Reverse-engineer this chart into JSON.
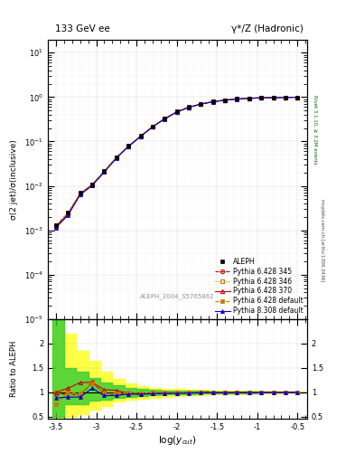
{
  "title_left": "133 GeV ee",
  "title_right": "γ*/Z (Hadronic)",
  "ylabel_main": "σ(2 jet)/σ(inclusive)",
  "ylabel_ratio": "Ratio to ALEPH",
  "xlabel": "log($y_{cut}$)",
  "watermark": "ALEPH_2004_S5765862",
  "right_label_top": "Rivet 3.1.10, ≥ 3.2M events",
  "right_label_bot": "mcplots.cern.ch [arXiv:1306.3436]",
  "xcut_log": [
    -3.5,
    -3.35,
    -3.2,
    -3.05,
    -2.9,
    -2.75,
    -2.6,
    -2.45,
    -2.3,
    -2.15,
    -2.0,
    -1.85,
    -1.7,
    -1.55,
    -1.4,
    -1.25,
    -1.1,
    -0.95,
    -0.8,
    -0.65,
    -0.5
  ],
  "aleph_y": [
    0.0013,
    0.0025,
    0.007,
    0.011,
    0.022,
    0.045,
    0.08,
    0.135,
    0.22,
    0.33,
    0.47,
    0.6,
    0.7,
    0.79,
    0.86,
    0.91,
    0.94,
    0.965,
    0.977,
    0.987,
    0.994
  ],
  "p6_345_y": [
    0.0012,
    0.0023,
    0.0065,
    0.0105,
    0.021,
    0.043,
    0.078,
    0.13,
    0.215,
    0.325,
    0.462,
    0.592,
    0.695,
    0.787,
    0.855,
    0.907,
    0.94,
    0.962,
    0.975,
    0.985,
    0.993
  ],
  "p6_346_y": [
    0.00125,
    0.0024,
    0.0066,
    0.0106,
    0.0212,
    0.0435,
    0.0785,
    0.132,
    0.217,
    0.327,
    0.464,
    0.594,
    0.697,
    0.789,
    0.857,
    0.908,
    0.941,
    0.963,
    0.976,
    0.986,
    0.993
  ],
  "p6_370_y": [
    0.00122,
    0.00235,
    0.0067,
    0.0107,
    0.0213,
    0.0432,
    0.0782,
    0.131,
    0.216,
    0.326,
    0.463,
    0.593,
    0.696,
    0.788,
    0.856,
    0.908,
    0.94,
    0.962,
    0.975,
    0.985,
    0.993
  ],
  "p6_def_y": [
    0.0013,
    0.0025,
    0.0068,
    0.0108,
    0.0215,
    0.044,
    0.079,
    0.132,
    0.218,
    0.328,
    0.464,
    0.594,
    0.697,
    0.789,
    0.857,
    0.908,
    0.941,
    0.963,
    0.976,
    0.986,
    0.993
  ],
  "p8_def_y": [
    0.00115,
    0.0022,
    0.0063,
    0.0102,
    0.0205,
    0.042,
    0.077,
    0.129,
    0.213,
    0.322,
    0.459,
    0.589,
    0.693,
    0.786,
    0.854,
    0.906,
    0.939,
    0.961,
    0.975,
    0.985,
    0.993
  ],
  "ratio_p6_345": [
    0.95,
    0.97,
    0.93,
    1.2,
    0.97,
    0.95,
    0.97,
    0.963,
    0.977,
    0.985,
    0.983,
    0.987,
    0.993,
    0.996,
    0.994,
    0.997,
    0.998,
    0.997,
    0.998,
    0.998,
    0.999
  ],
  "ratio_p6_346": [
    1.0,
    1.0,
    0.943,
    1.22,
    0.97,
    0.967,
    0.981,
    0.978,
    0.986,
    0.991,
    0.987,
    0.99,
    0.995,
    0.998,
    0.997,
    0.998,
    0.999,
    0.998,
    0.999,
    0.999,
    0.999
  ],
  "ratio_p6_370": [
    1.0,
    1.08,
    1.2,
    1.2,
    1.05,
    1.04,
    0.975,
    0.963,
    0.977,
    0.985,
    0.983,
    0.987,
    0.993,
    0.996,
    0.994,
    0.997,
    0.998,
    0.997,
    0.998,
    0.998,
    0.999
  ],
  "ratio_p6_def": [
    0.75,
    1.0,
    0.971,
    1.18,
    0.967,
    0.978,
    0.988,
    0.978,
    0.991,
    0.994,
    0.987,
    0.99,
    0.995,
    0.998,
    0.997,
    0.998,
    0.999,
    0.998,
    0.999,
    0.999,
    0.999
  ],
  "ratio_p8_def": [
    0.88,
    0.9,
    0.9,
    1.08,
    0.93,
    0.933,
    0.963,
    0.956,
    0.968,
    0.976,
    0.977,
    0.982,
    0.99,
    0.995,
    0.993,
    0.996,
    0.997,
    0.996,
    0.997,
    0.998,
    0.999
  ],
  "band_edges": [
    -3.55,
    -3.4,
    -3.25,
    -3.1,
    -2.95,
    -2.8,
    -2.65,
    -2.5,
    -2.35,
    -2.2,
    -2.05,
    -1.9,
    -1.75,
    -1.6,
    -1.45,
    -1.3,
    -1.15,
    -1.0,
    -0.85,
    -0.7,
    -0.55,
    -0.4
  ],
  "green_band_lo": [
    0.5,
    0.75,
    0.75,
    0.82,
    0.85,
    0.88,
    0.9,
    0.92,
    0.94,
    0.95,
    0.96,
    0.965,
    0.97,
    0.975,
    0.978,
    0.981,
    0.984,
    0.987,
    0.99,
    0.993,
    0.995
  ],
  "green_band_hi": [
    2.5,
    1.5,
    1.42,
    1.3,
    1.2,
    1.14,
    1.09,
    1.06,
    1.05,
    1.04,
    1.035,
    1.03,
    1.025,
    1.022,
    1.019,
    1.016,
    1.013,
    1.011,
    1.008,
    1.006,
    1.004
  ],
  "yellow_band_lo": [
    0.4,
    0.5,
    0.55,
    0.65,
    0.72,
    0.8,
    0.84,
    0.87,
    0.89,
    0.91,
    0.925,
    0.935,
    0.945,
    0.952,
    0.959,
    0.965,
    0.97,
    0.975,
    0.981,
    0.987,
    0.991
  ],
  "yellow_band_hi": [
    3.0,
    2.2,
    1.85,
    1.65,
    1.42,
    1.28,
    1.18,
    1.12,
    1.09,
    1.07,
    1.06,
    1.055,
    1.048,
    1.04,
    1.034,
    1.028,
    1.023,
    1.018,
    1.013,
    1.01,
    1.007
  ],
  "color_aleph": "#000000",
  "color_p6_345": "#cc0000",
  "color_p6_346": "#cc7700",
  "color_p6_370": "#cc0000",
  "color_p6_def": "#cc7700",
  "color_p8_def": "#0000cc",
  "color_green": "#33cc33",
  "color_yellow": "#ffff44",
  "xlim": [
    -3.6,
    -0.38
  ],
  "ylim_main": [
    1e-05,
    20.0
  ],
  "ylim_ratio": [
    0.45,
    2.5
  ],
  "yticks_ratio": [
    0.5,
    1.0,
    1.5,
    2.0
  ],
  "ytick_labels_ratio": [
    "0.5",
    "1",
    "1.5",
    "2"
  ]
}
